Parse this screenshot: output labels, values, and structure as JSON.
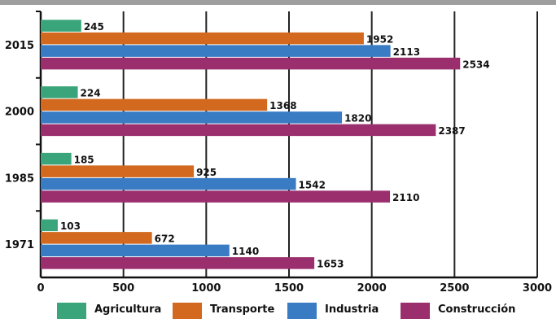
{
  "colors": {
    "top_strip": "#9e9e9e",
    "gridline": "#222222",
    "axis": "#111111"
  },
  "chart_data": {
    "type": "bar",
    "orientation": "horizontal",
    "categories": [
      "2015",
      "2000",
      "1985",
      "1971"
    ],
    "series": [
      {
        "name": "Agricultura",
        "color": "#3aa57a",
        "values": [
          245,
          224,
          185,
          103
        ]
      },
      {
        "name": "Transporte",
        "color": "#d2691e",
        "values": [
          1952,
          1368,
          925,
          672
        ]
      },
      {
        "name": "Industria",
        "color": "#3a7cc4",
        "values": [
          2113,
          1820,
          1542,
          1140
        ]
      },
      {
        "name": "Construcción",
        "color": "#9b2f6e",
        "values": [
          2534,
          2387,
          2110,
          1653
        ]
      }
    ],
    "xlim": [
      0,
      3000
    ],
    "xticks": [
      "0",
      "500",
      "1000",
      "1500",
      "2000",
      "2500",
      "3000"
    ],
    "grid": "vertical",
    "legend_position": "bottom",
    "title": "",
    "xlabel": "",
    "ylabel": ""
  }
}
